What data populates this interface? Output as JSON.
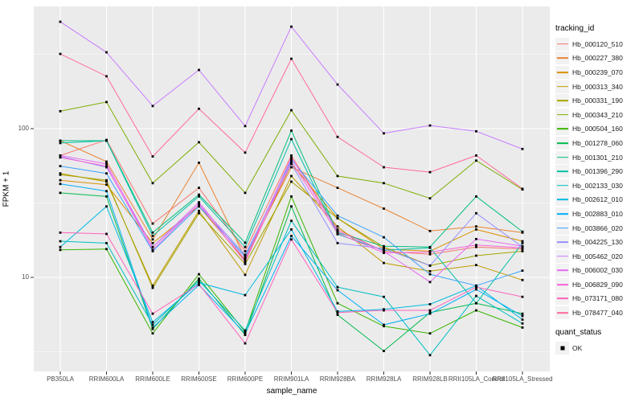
{
  "chart_data": {
    "type": "line",
    "title": "",
    "xlabel": "sample_name",
    "ylabel": "FPKM + 1",
    "y_scale": "log10",
    "y_ticks": [
      "10",
      "100"
    ],
    "y_tick_values": [
      10,
      100
    ],
    "ylim_log": [
      0.368,
      2.822
    ],
    "grid": true,
    "legend_position": "right",
    "categories": [
      "PB350LA",
      "RRIM600LA",
      "RRIM600LE",
      "RRIM600SE",
      "RRIM600PE",
      "RRIM901LA",
      "RRIM928BA",
      "RRIM928LA",
      "RRIM928LB",
      "RRII105LA_Control",
      "RRII105LA_Stressed"
    ],
    "series": [
      {
        "name": "Hb_000120_510",
        "color": "#F8766D",
        "values": [
          66,
          84,
          23,
          40,
          15,
          66,
          21,
          15,
          14.3,
          16,
          15.5
        ]
      },
      {
        "name": "Hb_000227_380",
        "color": "#EA8331",
        "values": [
          83,
          60,
          18,
          59,
          13.5,
          55,
          40,
          29,
          20.5,
          22,
          20
        ]
      },
      {
        "name": "Hb_000239_070",
        "color": "#D89000",
        "values": [
          45,
          42,
          17,
          30,
          13,
          58,
          25,
          15.5,
          15,
          21,
          17.5
        ]
      },
      {
        "name": "Hb_000313_340",
        "color": "#C09B00",
        "values": [
          50,
          44,
          8.8,
          28,
          10.4,
          48,
          22,
          12.5,
          11,
          12.1,
          9.6
        ]
      },
      {
        "name": "Hb_000331_190",
        "color": "#A3A500",
        "values": [
          49,
          45,
          8.5,
          27,
          12.3,
          44,
          25,
          16,
          12,
          14,
          15
        ]
      },
      {
        "name": "Hb_000343_210",
        "color": "#7CAE00",
        "values": [
          131,
          151,
          43,
          81,
          37,
          133,
          48,
          43,
          34,
          61,
          39
        ]
      },
      {
        "name": "Hb_000504_160",
        "color": "#39B600",
        "values": [
          15.3,
          15.5,
          4.2,
          10.5,
          4.3,
          35,
          6.7,
          4.7,
          4.2,
          6.0,
          4.6
        ]
      },
      {
        "name": "Hb_001278_060",
        "color": "#00BB4E",
        "values": [
          37,
          35,
          4.5,
          9.8,
          4.1,
          30,
          5.6,
          3.2,
          5.8,
          6.7,
          5.7
        ]
      },
      {
        "name": "Hb_001301_210",
        "color": "#00BF7D",
        "values": [
          83,
          83,
          20,
          36,
          17.1,
          97,
          20,
          16.2,
          16,
          35,
          20.3
        ]
      },
      {
        "name": "Hb_001396_290",
        "color": "#00C1A7",
        "values": [
          80,
          83,
          19,
          35,
          16,
          85,
          19.5,
          15.2,
          15.8,
          6.7,
          17
        ]
      },
      {
        "name": "Hb_002133_030",
        "color": "#00BFC4",
        "values": [
          17.5,
          17,
          4.8,
          9.5,
          4.4,
          24,
          8.6,
          7.4,
          3.0,
          7.5,
          4.9
        ]
      },
      {
        "name": "Hb_002612_010",
        "color": "#00BAE0",
        "values": [
          16,
          30,
          5.0,
          9.2,
          7.6,
          21,
          5.9,
          6.1,
          6.6,
          8.8,
          5.2
        ]
      },
      {
        "name": "Hb_002883_010",
        "color": "#00B0F6",
        "values": [
          42.5,
          38,
          4.6,
          8.9,
          4.2,
          19,
          8.2,
          4.8,
          5.7,
          8.3,
          5.5
        ]
      },
      {
        "name": "Hb_003866_020",
        "color": "#35A2FF",
        "values": [
          56,
          50,
          15,
          30,
          13.8,
          62,
          26,
          18.6,
          10.5,
          8.8,
          11.1
        ]
      },
      {
        "name": "Hb_004225_130",
        "color": "#9590FF",
        "values": [
          65,
          55,
          16,
          31,
          14.2,
          58,
          17,
          15.6,
          12,
          27,
          16
        ]
      },
      {
        "name": "Hb_005462_020",
        "color": "#C77CFF",
        "values": [
          523,
          326,
          142,
          248,
          104,
          485,
          198,
          93,
          105,
          96,
          73
        ]
      },
      {
        "name": "Hb_006002_030",
        "color": "#E76BF3",
        "values": [
          66,
          58,
          16,
          32,
          13.2,
          64,
          20.5,
          15,
          9.3,
          18.1,
          16.2
        ]
      },
      {
        "name": "Hb_006829_090",
        "color": "#FA62DB",
        "values": [
          64,
          56,
          15.3,
          31,
          12.7,
          60,
          19.8,
          14.6,
          14.8,
          16.5,
          15.8
        ]
      },
      {
        "name": "Hb_073171_080",
        "color": "#FF62BC",
        "values": [
          20,
          19.6,
          5.7,
          9.0,
          3.6,
          18,
          5.8,
          6.0,
          6.0,
          8.6,
          7.4
        ]
      },
      {
        "name": "Hb_078477_040",
        "color": "#FF6A98",
        "values": [
          318,
          225,
          65,
          136,
          69,
          295,
          88,
          55,
          51,
          66,
          39.4
        ]
      }
    ],
    "legend": {
      "color_title": "tracking_id",
      "shape_title": "quant_status",
      "shape_items": [
        {
          "label": "OK",
          "marker": "black-square"
        }
      ]
    },
    "style": {
      "panel_bg": "#EBEBEB",
      "grid_color": "#FFFFFF",
      "marker_color": "#000000",
      "tick_color": "#333333",
      "tick_text_color": "#4D4D4D",
      "legend_key_bg": "#F2F2F2"
    }
  }
}
